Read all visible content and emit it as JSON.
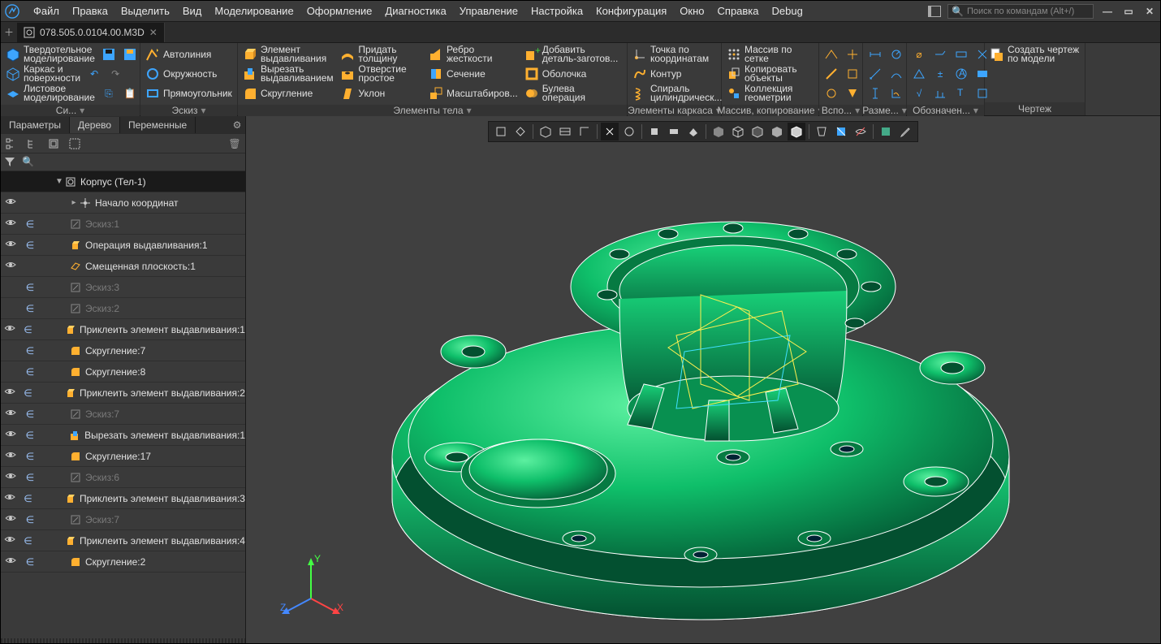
{
  "menu": {
    "items": [
      "Файл",
      "Правка",
      "Выделить",
      "Вид",
      "Моделирование",
      "Оформление",
      "Диагностика",
      "Управление",
      "Настройка",
      "Конфигурация",
      "Окно",
      "Справка",
      "Debug"
    ]
  },
  "search_placeholder": "Поиск по командам (Alt+/)",
  "doc_tab": "078.505.0.0104.00.M3D",
  "ribbon": {
    "modes": {
      "solid": "Твердотельное\nмоделирование",
      "wireframe": "Каркас и\nповерхности",
      "sheet": "Листовое\nмоделирование"
    },
    "group0_label": "Си...",
    "sketch": {
      "autoline": "Автолиния",
      "circle": "Окружность",
      "rect": "Прямоугольник",
      "label": "Эскиз"
    },
    "solids": {
      "extrude": "Элемент\nвыдавливания",
      "cut": "Вырезать\nвыдавливанием",
      "fillet": "Скругление",
      "thicken": "Придать\nтолщину",
      "hole": "Отверстие\nпростое",
      "draft": "Уклон",
      "rib": "Ребро\nжесткости",
      "section": "Сечение",
      "scale": "Масштабиров...",
      "add_part": "Добавить\nдеталь-заготов...",
      "shell": "Оболочка",
      "boolean": "Булева\nоперация",
      "label": "Элементы тела"
    },
    "frame": {
      "point": "Точка по\nкоординатам",
      "contour": "Контур",
      "spiral": "Спираль\nцилиндрическ...",
      "label": "Элементы каркаса"
    },
    "array": {
      "grid": "Массив по\nсетке",
      "copy": "Копировать\nобъекты",
      "collection": "Коллекция\nгеометрии",
      "label": "Массив, копирование"
    },
    "aux_label": "Вспо...",
    "dim_label": "Разме...",
    "annot_label": "Обозначен...",
    "drawing": {
      "create": "Создать чертеж\nпо модели",
      "label": "Чертеж"
    }
  },
  "left_tabs": [
    "Параметры",
    "Дерево",
    "Переменные"
  ],
  "tree": [
    {
      "indent": 1,
      "expand": "▼",
      "eye": "",
      "incl": "",
      "icon": "body",
      "label": "Корпус (Тел-1)",
      "sel": true
    },
    {
      "indent": 2,
      "expand": "▸",
      "eye": "👁",
      "incl": "",
      "icon": "origin",
      "label": "Начало координат"
    },
    {
      "indent": 2,
      "eye": "👁",
      "incl": "∈",
      "icon": "sketch",
      "label": "Эскиз:1",
      "dim": true
    },
    {
      "indent": 2,
      "eye": "👁",
      "incl": "∈",
      "icon": "extrude",
      "label": "Операция выдавливания:1"
    },
    {
      "indent": 2,
      "eye": "👁",
      "incl": "",
      "icon": "plane",
      "label": "Смещенная плоскость:1"
    },
    {
      "indent": 2,
      "eye": "",
      "incl": "∈",
      "icon": "sketch",
      "label": "Эскиз:3",
      "dim": true
    },
    {
      "indent": 2,
      "eye": "",
      "incl": "∈",
      "icon": "sketch",
      "label": "Эскиз:2",
      "dim": true
    },
    {
      "indent": 2,
      "eye": "👁",
      "incl": "∈",
      "icon": "extrude",
      "label": "Приклеить элемент выдавливания:1"
    },
    {
      "indent": 2,
      "eye": "",
      "incl": "∈",
      "icon": "fillet",
      "label": "Скругление:7"
    },
    {
      "indent": 2,
      "eye": "",
      "incl": "∈",
      "icon": "fillet",
      "label": "Скругление:8"
    },
    {
      "indent": 2,
      "eye": "👁",
      "incl": "∈",
      "icon": "extrude",
      "label": "Приклеить элемент выдавливания:2"
    },
    {
      "indent": 2,
      "eye": "👁",
      "incl": "∈",
      "icon": "sketch",
      "label": "Эскиз:7",
      "dim": true
    },
    {
      "indent": 2,
      "eye": "👁",
      "incl": "∈",
      "icon": "cut",
      "label": "Вырезать элемент выдавливания:1"
    },
    {
      "indent": 2,
      "eye": "👁",
      "incl": "∈",
      "icon": "fillet",
      "label": "Скругление:17"
    },
    {
      "indent": 2,
      "eye": "👁",
      "incl": "∈",
      "icon": "sketch",
      "label": "Эскиз:6",
      "dim": true
    },
    {
      "indent": 2,
      "eye": "👁",
      "incl": "∈",
      "icon": "extrude",
      "label": "Приклеить элемент выдавливания:3"
    },
    {
      "indent": 2,
      "eye": "👁",
      "incl": "∈",
      "icon": "sketch",
      "label": "Эскиз:7",
      "dim": true
    },
    {
      "indent": 2,
      "eye": "👁",
      "incl": "∈",
      "icon": "extrude",
      "label": "Приклеить элемент выдавливания:4"
    },
    {
      "indent": 2,
      "eye": "👁",
      "incl": "∈",
      "icon": "fillet",
      "label": "Скругление:2"
    }
  ],
  "colors": {
    "model_green": "#0fbf6a",
    "model_green_dark": "#067a42",
    "edge": "#ffffff",
    "origin_yellow": "#fff050",
    "origin_cyan": "#40e0ff"
  }
}
